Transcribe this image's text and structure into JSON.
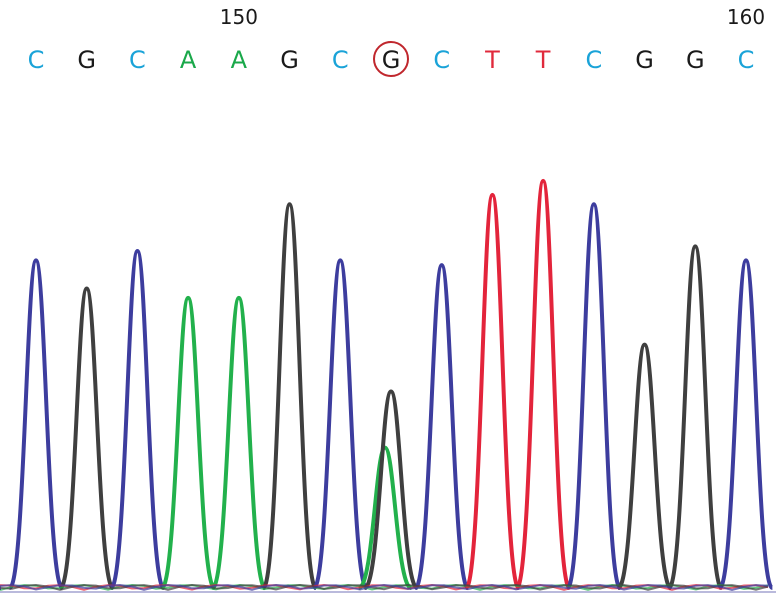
{
  "chart_data": {
    "type": "line",
    "title": "",
    "xlabel": "",
    "ylabel": "",
    "position_labels": [
      {
        "position": 150,
        "text": "150"
      },
      {
        "position": 160,
        "text": "160"
      }
    ],
    "bases": [
      "C",
      "G",
      "C",
      "A",
      "A",
      "G",
      "C",
      "G",
      "C",
      "T",
      "T",
      "C",
      "G",
      "G",
      "C"
    ],
    "positions": [
      146,
      147,
      148,
      149,
      150,
      151,
      152,
      153,
      154,
      155,
      156,
      157,
      158,
      159,
      160
    ],
    "highlighted_base_index": 7,
    "highlight_color": "#c0272d",
    "base_colors": {
      "A": "#1aa84a",
      "C": "#1aa3d8",
      "G": "#1a1a1a",
      "T": "#e02a3c"
    },
    "trace_colors": {
      "A": "#22b14c",
      "C": "#3d3d9e",
      "G": "#3f3f3f",
      "T": "#e3243b"
    },
    "peaks": [
      {
        "base": "C",
        "height": 0.7
      },
      {
        "base": "G",
        "height": 0.64
      },
      {
        "base": "C",
        "height": 0.72
      },
      {
        "base": "A",
        "height": 0.62
      },
      {
        "base": "A",
        "height": 0.62
      },
      {
        "base": "G",
        "height": 0.82
      },
      {
        "base": "C",
        "height": 0.7
      },
      {
        "base": "G",
        "height": 0.42,
        "secondary": {
          "base": "A",
          "height": 0.3
        }
      },
      {
        "base": "C",
        "height": 0.69
      },
      {
        "base": "T",
        "height": 0.84
      },
      {
        "base": "T",
        "height": 0.87
      },
      {
        "base": "C",
        "height": 0.82
      },
      {
        "base": "G",
        "height": 0.52
      },
      {
        "base": "G",
        "height": 0.73
      },
      {
        "base": "C",
        "height": 0.7
      }
    ],
    "ylim": [
      0,
      1
    ]
  }
}
